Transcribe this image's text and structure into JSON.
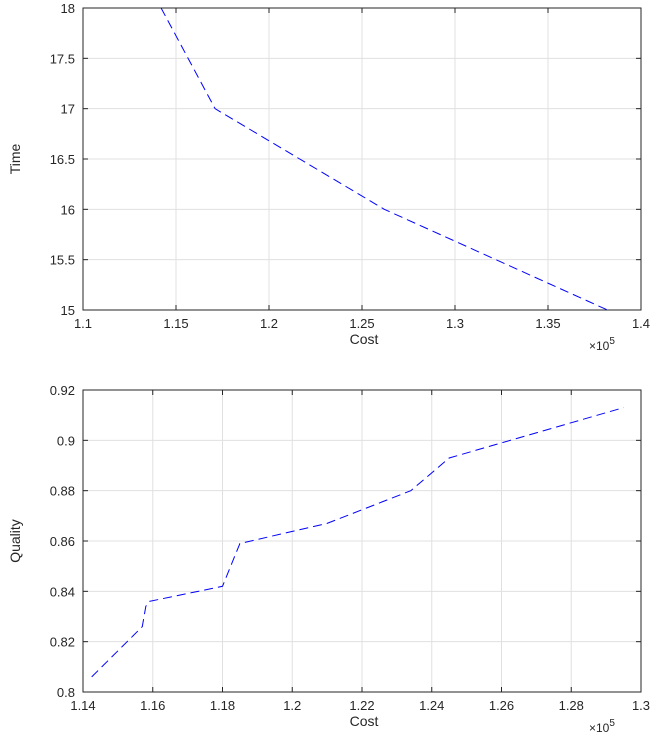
{
  "chart_data": [
    {
      "type": "line",
      "xlabel": "Cost",
      "ylabel": "Time",
      "x_multiplier": "×10^5",
      "xlim": [
        1.1,
        1.4
      ],
      "ylim": [
        15,
        18
      ],
      "grid": true,
      "xticks": [
        "1.1",
        "1.15",
        "1.2",
        "1.25",
        "1.3",
        "1.35",
        "1.4"
      ],
      "yticks": [
        "15",
        "15.5",
        "16",
        "16.5",
        "17",
        "17.5",
        "18"
      ],
      "series": [
        {
          "line_style": "dashed",
          "color": "#0000ff",
          "x": [
            1.142,
            1.171,
            1.262,
            1.382
          ],
          "y": [
            18.0,
            17.0,
            16.0,
            15.0
          ]
        }
      ]
    },
    {
      "type": "line",
      "xlabel": "Cost",
      "ylabel": "Quality",
      "x_multiplier": "×10^5",
      "xlim": [
        1.14,
        1.3
      ],
      "ylim": [
        0.8,
        0.92
      ],
      "grid": true,
      "xticks": [
        "1.14",
        "1.16",
        "1.18",
        "1.2",
        "1.22",
        "1.24",
        "1.26",
        "1.28",
        "1.3"
      ],
      "yticks": [
        "0.8",
        "0.82",
        "0.84",
        "0.86",
        "0.88",
        "0.9",
        "0.92"
      ],
      "series": [
        {
          "line_style": "dashed",
          "color": "#0000ff",
          "x": [
            1.1425,
            1.157,
            1.158,
            1.159,
            1.18,
            1.185,
            1.21,
            1.234,
            1.245,
            1.295
          ],
          "y": [
            0.806,
            0.826,
            0.834,
            0.836,
            0.842,
            0.859,
            0.867,
            0.88,
            0.893,
            0.913
          ]
        }
      ]
    }
  ]
}
